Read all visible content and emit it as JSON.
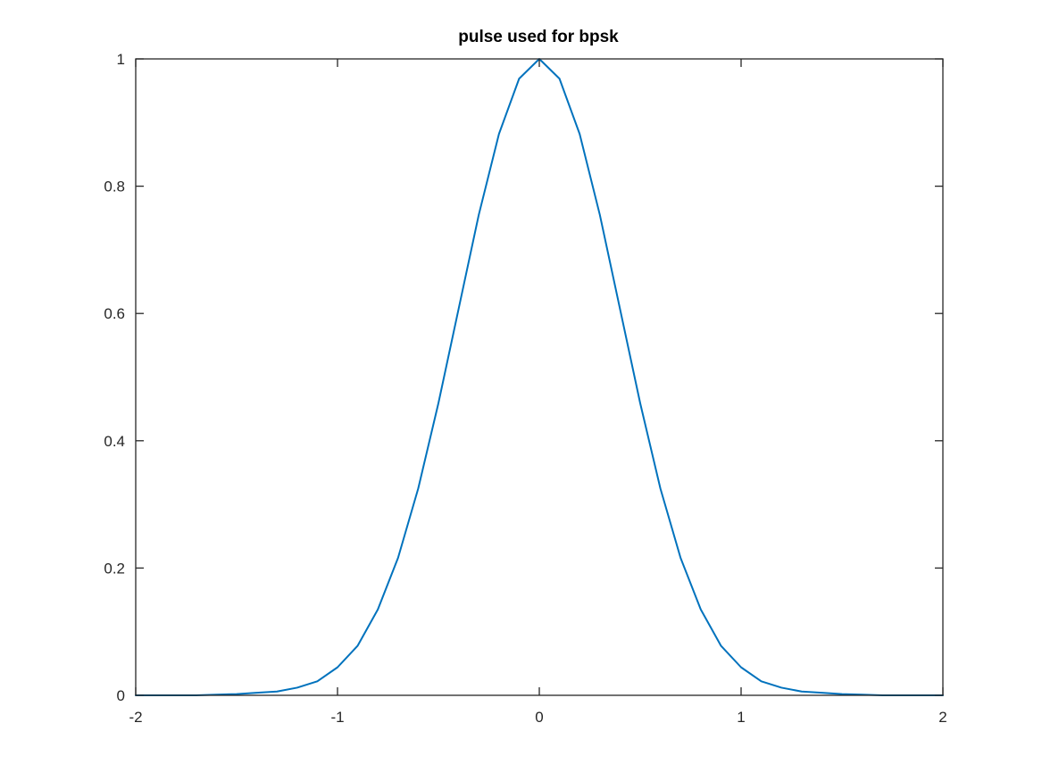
{
  "chart_data": {
    "type": "line",
    "title": "pulse used for bpsk",
    "xlabel": "",
    "ylabel": "",
    "xlim": [
      -2,
      2
    ],
    "ylim": [
      0,
      1
    ],
    "xticks": [
      -2,
      -1,
      0,
      1,
      2
    ],
    "xtick_labels": [
      "-2",
      "-1",
      "0",
      "1",
      "2"
    ],
    "yticks": [
      0,
      0.2,
      0.4,
      0.6,
      0.8,
      1
    ],
    "ytick_labels": [
      "0",
      "0.2",
      "0.4",
      "0.6",
      "0.8",
      "1"
    ],
    "grid": false,
    "box": true,
    "series": [
      {
        "color": "#0072bd",
        "x": [
          -2,
          -1.9,
          -1.8,
          -1.7,
          -1.6,
          -1.5,
          -1.4,
          -1.3,
          -1.2,
          -1.1,
          -1,
          -0.9,
          -0.8,
          -0.7,
          -0.6,
          -0.5,
          -0.4,
          -0.3,
          -0.2,
          -0.1,
          0,
          0.1,
          0.2,
          0.3,
          0.4,
          0.5,
          0.6,
          0.7,
          0.8,
          0.9,
          1,
          1.1,
          1.2,
          1.3,
          1.4,
          1.5,
          1.6,
          1.7,
          1.8,
          1.9,
          2
        ],
        "y": [
          0,
          0,
          0,
          0,
          0.001,
          0.002,
          0.004,
          0.006,
          0.012,
          0.022,
          0.044,
          0.078,
          0.135,
          0.216,
          0.325,
          0.459,
          0.607,
          0.755,
          0.882,
          0.969,
          1,
          0.969,
          0.882,
          0.755,
          0.607,
          0.459,
          0.325,
          0.216,
          0.135,
          0.078,
          0.044,
          0.022,
          0.012,
          0.006,
          0.004,
          0.002,
          0.001,
          0,
          0,
          0,
          0
        ]
      }
    ]
  },
  "colors": {
    "axis": "#262626",
    "line": "#0072bd",
    "background": "#ffffff"
  }
}
